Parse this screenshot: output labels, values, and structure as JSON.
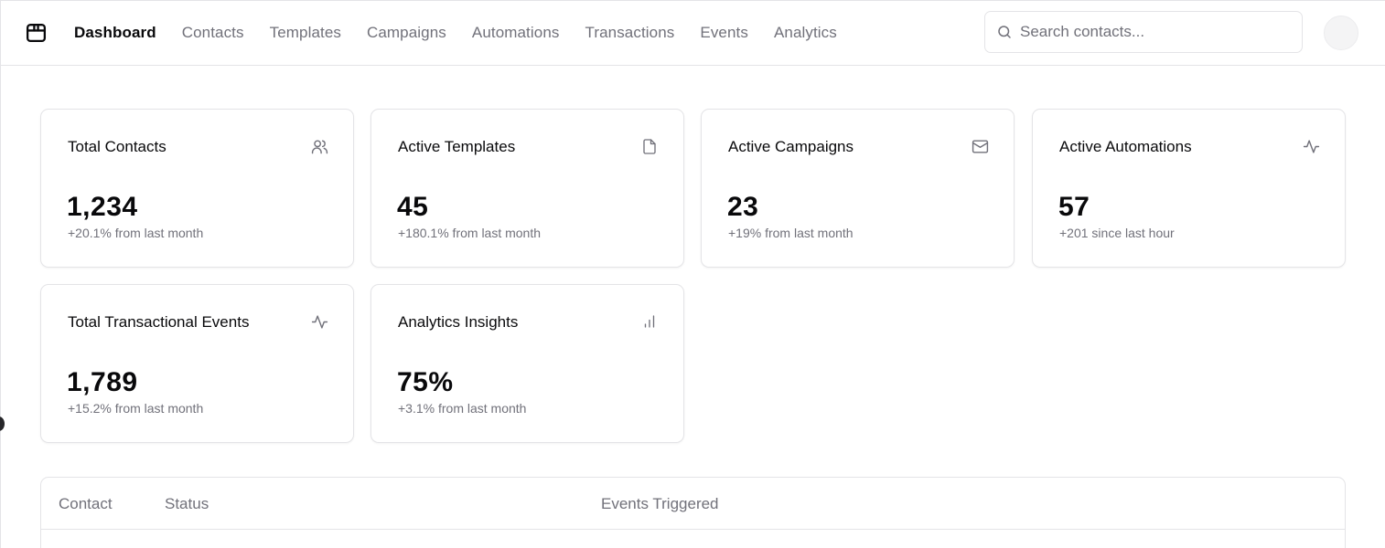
{
  "nav": {
    "items": [
      {
        "label": "Dashboard",
        "active": true
      },
      {
        "label": "Contacts",
        "active": false
      },
      {
        "label": "Templates",
        "active": false
      },
      {
        "label": "Campaigns",
        "active": false
      },
      {
        "label": "Automations",
        "active": false
      },
      {
        "label": "Transactions",
        "active": false
      },
      {
        "label": "Events",
        "active": false
      },
      {
        "label": "Analytics",
        "active": false
      }
    ]
  },
  "search": {
    "placeholder": "Search contacts..."
  },
  "cards": [
    {
      "title": "Total Contacts",
      "value": "1,234",
      "sub": "+20.1% from last month",
      "icon": "users-icon"
    },
    {
      "title": "Active Templates",
      "value": "45",
      "sub": "+180.1% from last month",
      "icon": "file-icon"
    },
    {
      "title": "Active Campaigns",
      "value": "23",
      "sub": "+19% from last month",
      "icon": "mail-icon"
    },
    {
      "title": "Active Automations",
      "value": "57",
      "sub": "+201 since last hour",
      "icon": "activity-icon"
    },
    {
      "title": "Total Transactional Events",
      "value": "1,789",
      "sub": "+15.2% from last month",
      "icon": "activity-icon"
    },
    {
      "title": "Analytics Insights",
      "value": "75%",
      "sub": "+3.1% from last month",
      "icon": "bar-chart-icon"
    }
  ],
  "table": {
    "columns": [
      "Contact",
      "Status",
      "Events Triggered"
    ]
  },
  "colors": {
    "border": "#e4e4e7",
    "muted_text": "#71717a",
    "text": "#09090b"
  }
}
